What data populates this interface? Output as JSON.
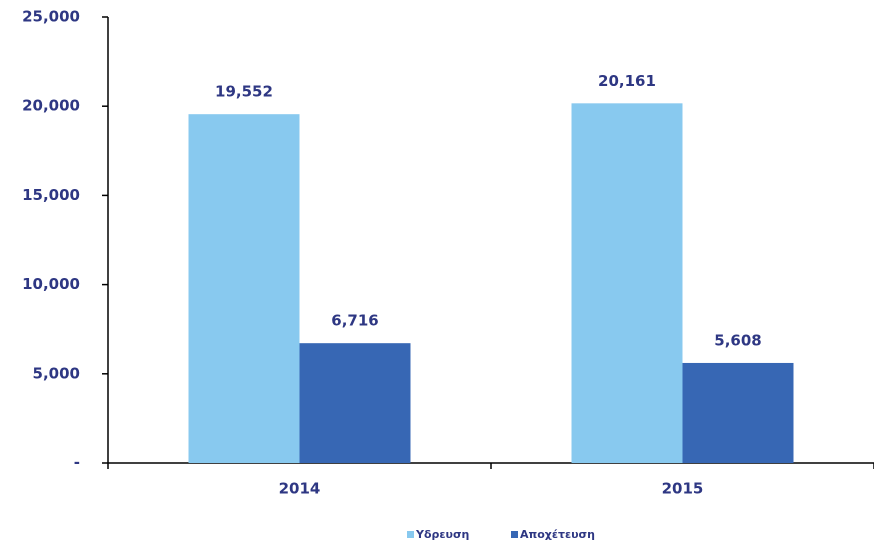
{
  "chart_data": {
    "type": "bar",
    "categories": [
      "2014",
      "2015"
    ],
    "series": [
      {
        "name": "Υδρευση",
        "color": "#88c9ef",
        "values": [
          19552,
          20161
        ],
        "value_labels": [
          "19,552",
          "20,161"
        ]
      },
      {
        "name": "Αποχέτευση",
        "color": "#3767b4",
        "values": [
          6716,
          5608
        ],
        "value_labels": [
          "6,716",
          "5,608"
        ]
      }
    ],
    "ylim": [
      0,
      25000
    ],
    "yticks": [
      {
        "value": 0,
        "label": "-"
      },
      {
        "value": 5000,
        "label": "5,000"
      },
      {
        "value": 10000,
        "label": "10,000"
      },
      {
        "value": 15000,
        "label": "15,000"
      },
      {
        "value": 20000,
        "label": "20,000"
      },
      {
        "value": 25000,
        "label": "25,000"
      }
    ],
    "legend": "bottom"
  }
}
